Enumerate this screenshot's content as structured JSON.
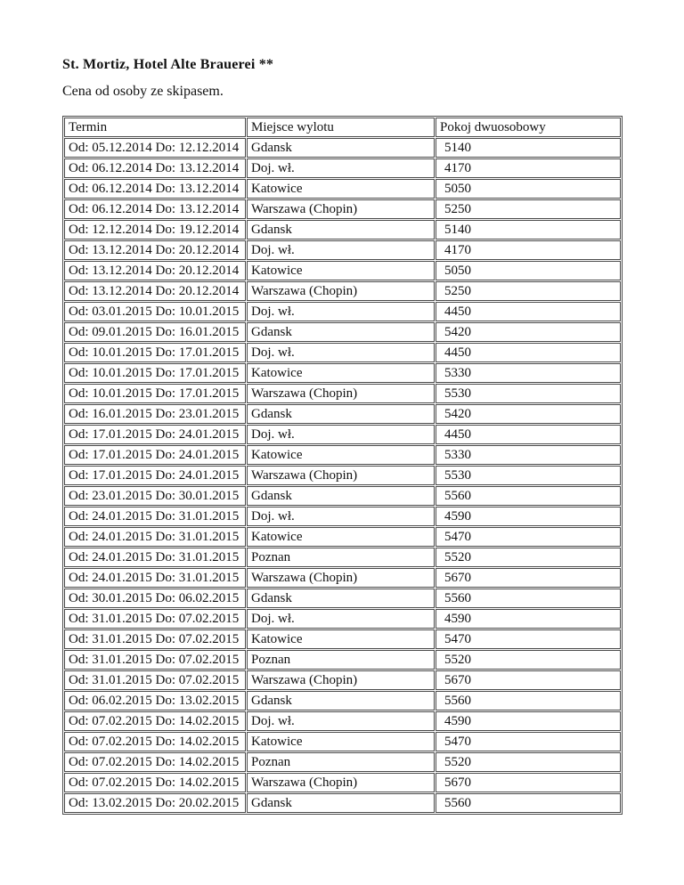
{
  "page": {
    "title": "St. Mortiz, Hotel Alte Brauerei **",
    "subtitle": "Cena od osoby ze skipasem."
  },
  "table": {
    "columns": [
      "Termin",
      "Miejsce wylotu",
      "Pokoj dwuosobowy"
    ],
    "rows": [
      [
        "Od: 05.12.2014 Do: 12.12.2014",
        "Gdansk",
        "5140"
      ],
      [
        "Od: 06.12.2014 Do: 13.12.2014",
        "Doj. wł.",
        "4170"
      ],
      [
        "Od: 06.12.2014 Do: 13.12.2014",
        "Katowice",
        "5050"
      ],
      [
        "Od: 06.12.2014 Do: 13.12.2014",
        "Warszawa (Chopin)",
        "5250"
      ],
      [
        "Od: 12.12.2014 Do: 19.12.2014",
        "Gdansk",
        "5140"
      ],
      [
        "Od: 13.12.2014 Do: 20.12.2014",
        "Doj. wł.",
        "4170"
      ],
      [
        "Od: 13.12.2014 Do: 20.12.2014",
        "Katowice",
        "5050"
      ],
      [
        "Od: 13.12.2014 Do: 20.12.2014",
        "Warszawa (Chopin)",
        "5250"
      ],
      [
        "Od: 03.01.2015 Do: 10.01.2015",
        "Doj. wł.",
        "4450"
      ],
      [
        "Od: 09.01.2015 Do: 16.01.2015",
        "Gdansk",
        "5420"
      ],
      [
        "Od: 10.01.2015 Do: 17.01.2015",
        "Doj. wł.",
        "4450"
      ],
      [
        "Od: 10.01.2015 Do: 17.01.2015",
        "Katowice",
        "5330"
      ],
      [
        "Od: 10.01.2015 Do: 17.01.2015",
        "Warszawa (Chopin)",
        "5530"
      ],
      [
        "Od: 16.01.2015 Do: 23.01.2015",
        "Gdansk",
        "5420"
      ],
      [
        "Od: 17.01.2015 Do: 24.01.2015",
        "Doj. wł.",
        "4450"
      ],
      [
        "Od: 17.01.2015 Do: 24.01.2015",
        "Katowice",
        "5330"
      ],
      [
        "Od: 17.01.2015 Do: 24.01.2015",
        "Warszawa (Chopin)",
        "5530"
      ],
      [
        "Od: 23.01.2015 Do: 30.01.2015",
        "Gdansk",
        "5560"
      ],
      [
        "Od: 24.01.2015 Do: 31.01.2015",
        "Doj. wł.",
        "4590"
      ],
      [
        "Od: 24.01.2015 Do: 31.01.2015",
        "Katowice",
        "5470"
      ],
      [
        "Od: 24.01.2015 Do: 31.01.2015",
        "Poznan",
        "5520"
      ],
      [
        "Od: 24.01.2015 Do: 31.01.2015",
        "Warszawa (Chopin)",
        "5670"
      ],
      [
        "Od: 30.01.2015 Do: 06.02.2015",
        "Gdansk",
        "5560"
      ],
      [
        "Od: 31.01.2015 Do: 07.02.2015",
        "Doj. wł.",
        "4590"
      ],
      [
        "Od: 31.01.2015 Do: 07.02.2015",
        "Katowice",
        "5470"
      ],
      [
        "Od: 31.01.2015 Do: 07.02.2015",
        "Poznan",
        "5520"
      ],
      [
        "Od: 31.01.2015 Do: 07.02.2015",
        "Warszawa (Chopin)",
        "5670"
      ],
      [
        "Od: 06.02.2015 Do: 13.02.2015",
        "Gdansk",
        "5560"
      ],
      [
        "Od: 07.02.2015 Do: 14.02.2015",
        "Doj. wł.",
        "4590"
      ],
      [
        "Od: 07.02.2015 Do: 14.02.2015",
        "Katowice",
        "5470"
      ],
      [
        "Od: 07.02.2015 Do: 14.02.2015",
        "Poznan",
        "5520"
      ],
      [
        "Od: 07.02.2015 Do: 14.02.2015",
        "Warszawa (Chopin)",
        "5670"
      ],
      [
        "Od: 13.02.2015 Do: 20.02.2015",
        "Gdansk",
        "5560"
      ]
    ]
  }
}
